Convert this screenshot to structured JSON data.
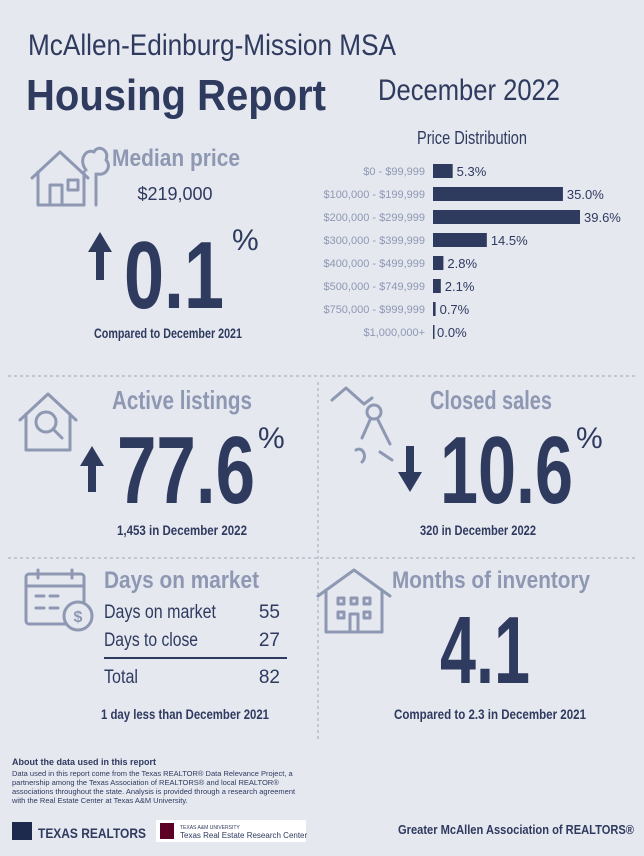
{
  "header": {
    "region": "McAllen-Edinburg-Mission MSA",
    "title": "Housing Report",
    "date": "December 2022"
  },
  "median_price": {
    "label": "Median price",
    "price": "$219,000",
    "change": "0.1",
    "change_unit": "%",
    "comparison": "Compared to December 2021"
  },
  "chart_data": {
    "type": "bar",
    "orientation": "horizontal",
    "title": "Price Distribution",
    "categories": [
      "$0 - $99,999",
      "$100,000 - $199,999",
      "$200,000 - $299,999",
      "$300,000 - $399,999",
      "$400,000 - $499,999",
      "$500,000 - $749,999",
      "$750,000 - $999,999",
      "$1,000,000+"
    ],
    "values": [
      5.3,
      35.0,
      39.6,
      14.5,
      2.8,
      2.1,
      0.7,
      0.0
    ],
    "value_labels": [
      "5.3%",
      "35.0%",
      "39.6%",
      "14.5%",
      "2.8%",
      "2.1%",
      "0.7%",
      "0.0%"
    ],
    "color": "#2f3a5f"
  },
  "active_listings": {
    "label": "Active listings",
    "change": "77.6",
    "change_unit": "%",
    "comparison": "1,453 in December 2022"
  },
  "closed_sales": {
    "label": "Closed sales",
    "change": "10.6",
    "change_unit": "%",
    "comparison": "320 in December 2022"
  },
  "days_on_market": {
    "label": "Days on market",
    "rows": [
      [
        "Days on market",
        55
      ],
      [
        "Days to close",
        27
      ]
    ],
    "total": [
      "Total",
      82
    ],
    "comparison": "1 day less than December 2021"
  },
  "months_of_inventory": {
    "label": "Months of inventory",
    "value": "4.1",
    "comparison": "Compared to 2.3 in December 2021"
  },
  "footer": {
    "about_title": "About the data used in this report",
    "about_lines": [
      "Data used in this report come from the Texas REALTOR® Data Relevance Project, a",
      "partnership among the Texas Association of REALTORS® and local REALTOR®",
      "associations throughout the state. Analysis is provided through a research agreement",
      "with the Real Estate Center at Texas A&M University."
    ],
    "logo_realtors": "TEXAS REALTORS",
    "logo_tamu_small": "TEXAS A&M UNIVERSITY",
    "logo_tamu": "Texas Real Estate Research Center",
    "association": "Greater McAllen Association of REALTORS®"
  }
}
